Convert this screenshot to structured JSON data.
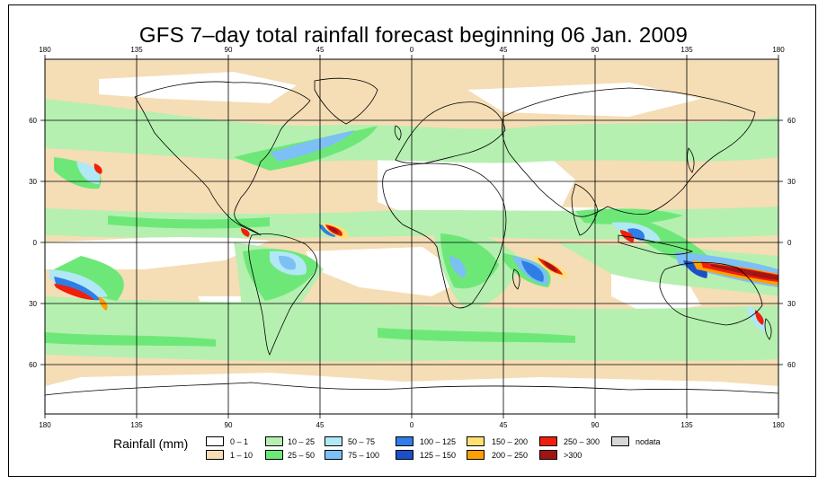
{
  "title": "GFS 7–day total rainfall forecast beginning 06 Jan. 2009",
  "lon_ticks_top": [
    "180",
    "135",
    "90",
    "45",
    "0",
    "45",
    "90",
    "135",
    "180"
  ],
  "lon_ticks_bottom": [
    "180",
    "135",
    "90",
    "45",
    "0",
    "45",
    "90",
    "135",
    "180"
  ],
  "lat_ticks_left": [
    "60",
    "30",
    "0",
    "30",
    "60"
  ],
  "lat_ticks_right": [
    "60",
    "30",
    "0",
    "30",
    "60"
  ],
  "legend": {
    "label": "Rainfall (mm)",
    "items": [
      {
        "text": "0 – 1",
        "color": "#ffffff"
      },
      {
        "text": "1 – 10",
        "color": "#f5ddb5"
      },
      {
        "text": "10 – 25",
        "color": "#b5f0b0"
      },
      {
        "text": "25 – 50",
        "color": "#6de878"
      },
      {
        "text": "50 – 75",
        "color": "#b0e8f5"
      },
      {
        "text": "75 – 100",
        "color": "#7cc0f5"
      },
      {
        "text": "100 – 125",
        "color": "#2f7de6"
      },
      {
        "text": "125 – 150",
        "color": "#1a4fc8"
      },
      {
        "text": "150 – 200",
        "color": "#ffe070"
      },
      {
        "text": "200 – 250",
        "color": "#ffa000"
      },
      {
        "text": "250 – 300",
        "color": "#f01e0a"
      },
      {
        "text": ">300",
        "color": "#a01414"
      },
      {
        "text": "nodata",
        "color": "#d7d7d7"
      }
    ]
  }
}
